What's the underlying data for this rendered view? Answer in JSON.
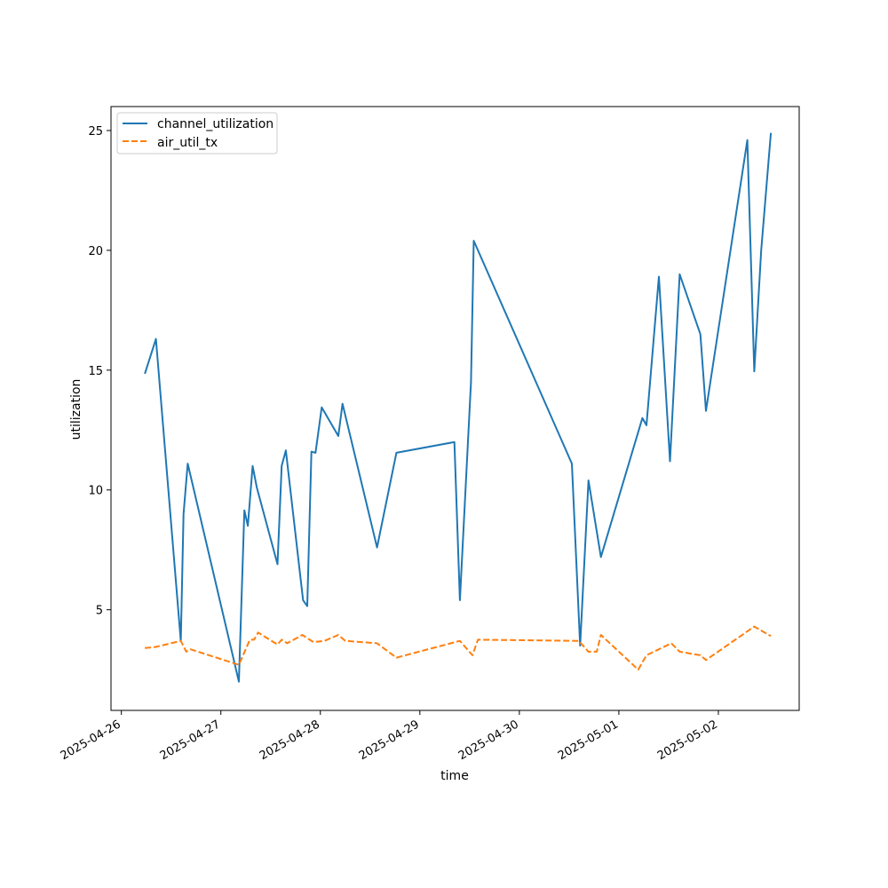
{
  "chart_data": {
    "type": "line",
    "xlabel": "time",
    "ylabel": "utilization",
    "x_ticks": [
      "2025-04-26",
      "2025-04-27",
      "2025-04-28",
      "2025-04-29",
      "2025-04-30",
      "2025-05-01",
      "2025-05-02"
    ],
    "y_ticks": [
      5,
      10,
      15,
      20,
      25
    ],
    "xlim": [
      "2025-04-25T21:30",
      "2025-05-02T19:30"
    ],
    "ylim": [
      0.8,
      26.0
    ],
    "grid": false,
    "legend_position": "upper-left",
    "series": [
      {
        "name": "channel_utilization",
        "color": "#1f77b4",
        "dash": "solid",
        "points": [
          [
            "2025-04-26T05:40",
            14.85
          ],
          [
            "2025-04-26T08:20",
            16.3
          ],
          [
            "2025-04-26T14:20",
            3.7
          ],
          [
            "2025-04-26T15:00",
            9.0
          ],
          [
            "2025-04-26T16:00",
            11.1
          ],
          [
            "2025-04-27T04:20",
            2.0
          ],
          [
            "2025-04-27T05:40",
            9.15
          ],
          [
            "2025-04-27T06:30",
            8.5
          ],
          [
            "2025-04-27T07:40",
            11.0
          ],
          [
            "2025-04-27T08:40",
            10.1
          ],
          [
            "2025-04-27T13:40",
            6.9
          ],
          [
            "2025-04-27T14:40",
            11.0
          ],
          [
            "2025-04-27T15:40",
            11.65
          ],
          [
            "2025-04-27T19:50",
            5.4
          ],
          [
            "2025-04-27T20:50",
            5.15
          ],
          [
            "2025-04-27T21:50",
            11.6
          ],
          [
            "2025-04-27T22:50",
            11.55
          ],
          [
            "2025-04-28T00:20",
            13.45
          ],
          [
            "2025-04-28T04:20",
            12.25
          ],
          [
            "2025-04-28T05:20",
            13.6
          ],
          [
            "2025-04-28T13:40",
            7.6
          ],
          [
            "2025-04-28T18:20",
            11.55
          ],
          [
            "2025-04-29T08:20",
            12.0
          ],
          [
            "2025-04-29T09:40",
            5.4
          ],
          [
            "2025-04-29T12:20",
            14.5
          ],
          [
            "2025-04-29T13:00",
            20.4
          ],
          [
            "2025-04-30T12:40",
            11.1
          ],
          [
            "2025-04-30T14:40",
            3.5
          ],
          [
            "2025-04-30T16:40",
            10.4
          ],
          [
            "2025-04-30T19:40",
            7.2
          ],
          [
            "2025-05-01T05:40",
            13.0
          ],
          [
            "2025-05-01T06:40",
            12.7
          ],
          [
            "2025-05-01T09:40",
            18.9
          ],
          [
            "2025-05-01T12:20",
            11.2
          ],
          [
            "2025-05-01T14:40",
            19.0
          ],
          [
            "2025-05-01T19:40",
            16.5
          ],
          [
            "2025-05-01T21:00",
            13.3
          ],
          [
            "2025-05-02T07:00",
            24.6
          ],
          [
            "2025-05-02T08:40",
            14.95
          ],
          [
            "2025-05-02T10:20",
            20.0
          ],
          [
            "2025-05-02T12:40",
            24.9
          ]
        ]
      },
      {
        "name": "air_util_tx",
        "color": "#ff7f0e",
        "dash": "dashed",
        "points": [
          [
            "2025-04-26T05:40",
            3.4
          ],
          [
            "2025-04-26T08:20",
            3.45
          ],
          [
            "2025-04-26T14:20",
            3.7
          ],
          [
            "2025-04-26T15:40",
            3.25
          ],
          [
            "2025-04-26T16:40",
            3.35
          ],
          [
            "2025-04-27T04:20",
            2.7
          ],
          [
            "2025-04-27T07:00",
            3.75
          ],
          [
            "2025-04-27T08:00",
            3.75
          ],
          [
            "2025-04-27T09:00",
            4.05
          ],
          [
            "2025-04-27T10:20",
            3.9
          ],
          [
            "2025-04-27T13:40",
            3.55
          ],
          [
            "2025-04-27T14:40",
            3.75
          ],
          [
            "2025-04-27T16:00",
            3.6
          ],
          [
            "2025-04-27T19:40",
            3.95
          ],
          [
            "2025-04-27T22:20",
            3.65
          ],
          [
            "2025-04-28T01:00",
            3.7
          ],
          [
            "2025-04-28T04:20",
            3.95
          ],
          [
            "2025-04-28T06:00",
            3.7
          ],
          [
            "2025-04-28T13:40",
            3.6
          ],
          [
            "2025-04-28T18:20",
            3.0
          ],
          [
            "2025-04-29T09:40",
            3.7
          ],
          [
            "2025-04-29T12:40",
            3.1
          ],
          [
            "2025-04-29T14:00",
            3.75
          ],
          [
            "2025-04-30T14:20",
            3.7
          ],
          [
            "2025-04-30T16:40",
            3.25
          ],
          [
            "2025-04-30T18:40",
            3.25
          ],
          [
            "2025-04-30T19:40",
            3.95
          ],
          [
            "2025-05-01T04:40",
            2.5
          ],
          [
            "2025-05-01T06:40",
            3.1
          ],
          [
            "2025-05-01T12:40",
            3.6
          ],
          [
            "2025-05-01T14:40",
            3.25
          ],
          [
            "2025-05-01T19:40",
            3.1
          ],
          [
            "2025-05-01T21:00",
            2.9
          ],
          [
            "2025-05-02T08:40",
            4.3
          ],
          [
            "2025-05-02T12:40",
            3.9
          ]
        ]
      }
    ]
  }
}
